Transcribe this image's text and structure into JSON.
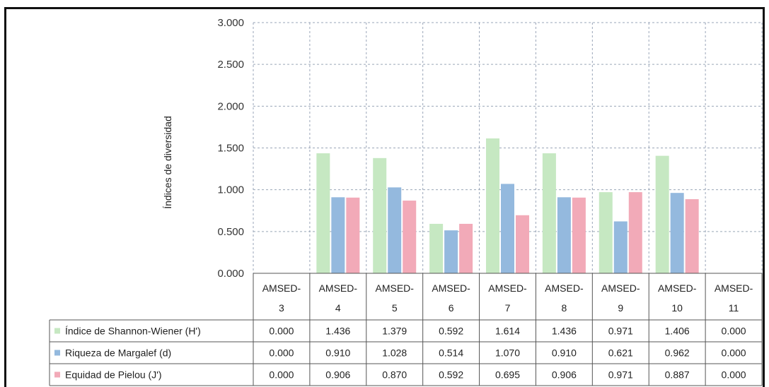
{
  "chart_data": {
    "type": "bar",
    "ylabel": "Índices de diversidad",
    "ylim": [
      0,
      3.0
    ],
    "yticks": [
      "0.000",
      "0.500",
      "1.000",
      "1.500",
      "2.000",
      "2.500",
      "3.000"
    ],
    "grid": true,
    "legend": "data-table-below",
    "categories": [
      [
        "AMSED-",
        "3"
      ],
      [
        "AMSED-",
        "4"
      ],
      [
        "AMSED-",
        "5"
      ],
      [
        "AMSED-",
        "6"
      ],
      [
        "AMSED-",
        "7"
      ],
      [
        "AMSED-",
        "8"
      ],
      [
        "AMSED-",
        "9"
      ],
      [
        "AMSED-",
        "10"
      ],
      [
        "AMSED-",
        "11"
      ]
    ],
    "series": [
      {
        "name": "Índice de Shannon-Wiener (H')",
        "color": "#c6e8c2",
        "values": [
          0.0,
          1.436,
          1.379,
          0.592,
          1.614,
          1.436,
          0.971,
          1.406,
          0.0
        ],
        "labels": [
          "0.000",
          "1.436",
          "1.379",
          "0.592",
          "1.614",
          "1.436",
          "0.971",
          "1.406",
          "0.000"
        ]
      },
      {
        "name": "Riqueza de Margalef (d)",
        "color": "#94b9de",
        "values": [
          0.0,
          0.91,
          1.028,
          0.514,
          1.07,
          0.91,
          0.621,
          0.962,
          0.0
        ],
        "labels": [
          "0.000",
          "0.910",
          "1.028",
          "0.514",
          "1.070",
          "0.910",
          "0.621",
          "0.962",
          "0.000"
        ]
      },
      {
        "name": "Equidad de Pielou (J')",
        "color": "#f2aab8",
        "values": [
          0.0,
          0.906,
          0.87,
          0.592,
          0.695,
          0.906,
          0.971,
          0.887,
          0.0
        ],
        "labels": [
          "0.000",
          "0.906",
          "0.870",
          "0.592",
          "0.695",
          "0.906",
          "0.971",
          "0.887",
          "0.000"
        ]
      }
    ]
  }
}
